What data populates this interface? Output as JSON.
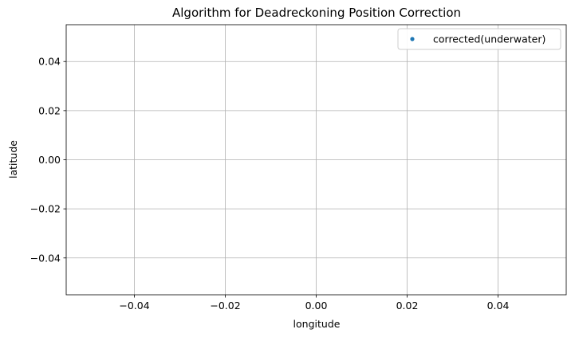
{
  "chart_data": {
    "type": "scatter",
    "title": "Algorithm for Deadreckoning Position Correction",
    "xlabel": "longitude",
    "ylabel": "latitude",
    "xlim": [
      -0.055,
      0.055
    ],
    "ylim": [
      -0.055,
      0.055
    ],
    "x_ticks": [
      -0.04,
      -0.02,
      0.0,
      0.02,
      0.04
    ],
    "y_ticks": [
      -0.04,
      -0.02,
      0.0,
      0.02,
      0.04
    ],
    "x_tick_labels": [
      "−0.04",
      "−0.02",
      "0.00",
      "0.02",
      "0.04"
    ],
    "y_tick_labels": [
      "−0.04",
      "−0.02",
      "0.00",
      "0.02",
      "0.04"
    ],
    "grid": true,
    "legend_position": "top-right",
    "series": [
      {
        "name": "corrected(underwater)",
        "color": "#1f77b4",
        "marker": "dot",
        "x": [],
        "y": []
      }
    ]
  }
}
